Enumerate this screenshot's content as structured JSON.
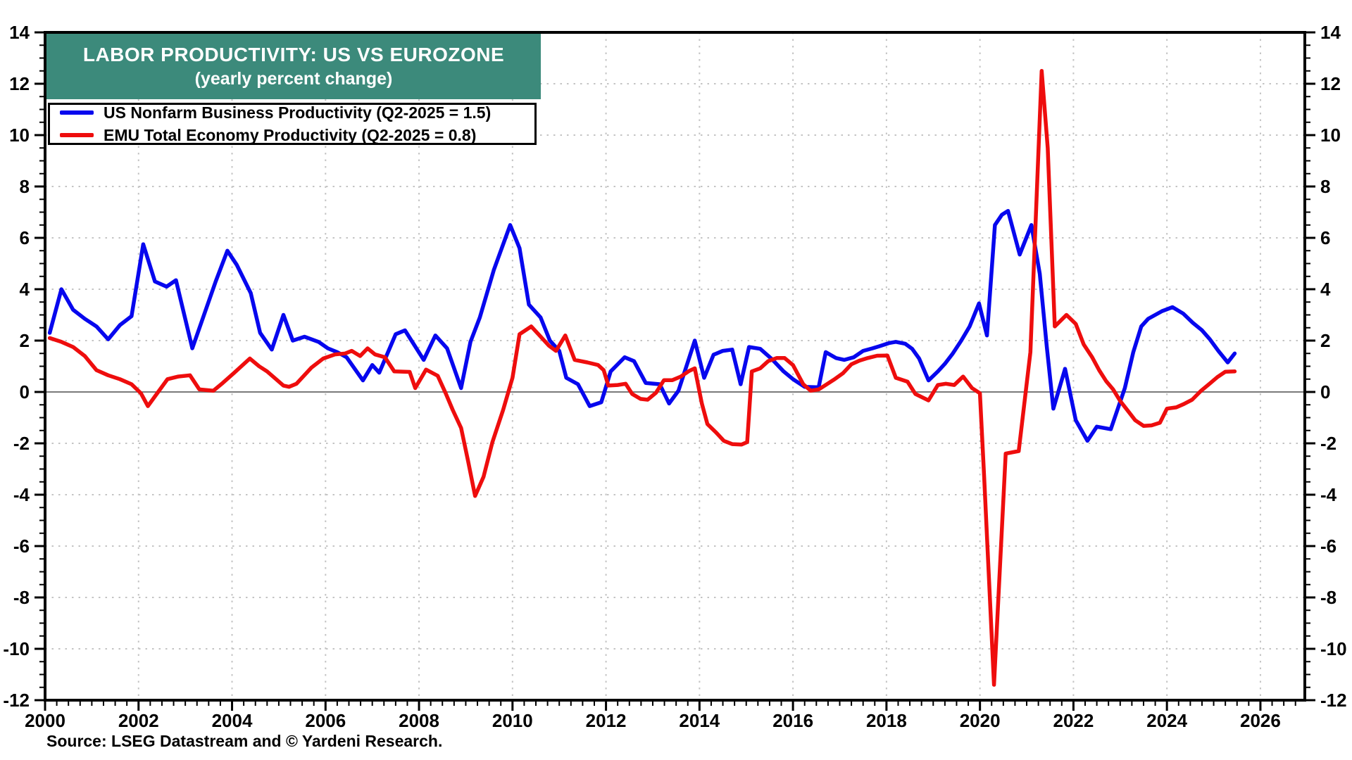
{
  "title": {
    "line1": "LABOR PRODUCTIVITY: US VS EUROZONE",
    "line2": "(yearly percent change)",
    "band_color": "#3c8a7b",
    "text_color": "#ffffff"
  },
  "legend": {
    "items": [
      {
        "label": "US Nonfarm Business Productivity (Q2-2025 = 1.5)",
        "color": "#0707ee"
      },
      {
        "label": "EMU Total Economy Productivity (Q2-2025 = 0.8)",
        "color": "#ee0d0d"
      }
    ]
  },
  "source": "Source: LSEG Datastream and © Yardeni Research.",
  "colors": {
    "us_line": "#0707ee",
    "emu_line": "#ee0d0d",
    "grid": "#c4c4c4",
    "zero_line": "#7a7a7a",
    "frame": "#000000",
    "background": "#ffffff"
  },
  "axes": {
    "x_tick_labels": [
      "2000",
      "2002",
      "2004",
      "2006",
      "2008",
      "2010",
      "2012",
      "2014",
      "2016",
      "2018",
      "2020",
      "2022",
      "2024",
      "2026"
    ],
    "y_tick_labels": [
      "-12",
      "-10",
      "-8",
      "-6",
      "-4",
      "-2",
      "0",
      "2",
      "4",
      "6",
      "8",
      "10",
      "12",
      "14"
    ]
  },
  "chart_data": {
    "type": "line",
    "title": "LABOR PRODUCTIVITY: US VS EUROZONE",
    "subtitle": "(yearly percent change)",
    "xlabel": "",
    "ylabel": "yearly percent change",
    "x_range": [
      2000,
      2026.95
    ],
    "ylim": [
      -12,
      14
    ],
    "x_major_tick_step": 2,
    "x_minor_tick_step": 0.25,
    "y_major_tick_step": 2,
    "y_minor_tick_step": 0.5,
    "grid": "dotted",
    "legend_position": "top-left",
    "series": [
      {
        "name": "US Nonfarm Business Productivity (Q2-2025 = 1.5)",
        "color": "#0707ee",
        "points": [
          [
            2000.1,
            2.3
          ],
          [
            2000.35,
            4.0
          ],
          [
            2000.6,
            3.2
          ],
          [
            2000.85,
            2.85
          ],
          [
            2001.1,
            2.55
          ],
          [
            2001.35,
            2.05
          ],
          [
            2001.6,
            2.6
          ],
          [
            2001.85,
            2.95
          ],
          [
            2002.1,
            5.75
          ],
          [
            2002.35,
            4.3
          ],
          [
            2002.6,
            4.1
          ],
          [
            2002.8,
            4.35
          ],
          [
            2003.15,
            1.7
          ],
          [
            2003.4,
            3.0
          ],
          [
            2003.65,
            4.3
          ],
          [
            2003.9,
            5.5
          ],
          [
            2004.1,
            4.95
          ],
          [
            2004.4,
            3.85
          ],
          [
            2004.6,
            2.3
          ],
          [
            2004.85,
            1.65
          ],
          [
            2005.1,
            3.0
          ],
          [
            2005.3,
            2.0
          ],
          [
            2005.55,
            2.15
          ],
          [
            2005.85,
            1.95
          ],
          [
            2006.05,
            1.7
          ],
          [
            2006.25,
            1.55
          ],
          [
            2006.45,
            1.35
          ],
          [
            2006.8,
            0.45
          ],
          [
            2007.0,
            1.05
          ],
          [
            2007.15,
            0.75
          ],
          [
            2007.5,
            2.25
          ],
          [
            2007.7,
            2.4
          ],
          [
            2008.1,
            1.25
          ],
          [
            2008.35,
            2.2
          ],
          [
            2008.6,
            1.7
          ],
          [
            2008.9,
            0.15
          ],
          [
            2009.1,
            1.95
          ],
          [
            2009.3,
            2.9
          ],
          [
            2009.6,
            4.75
          ],
          [
            2009.95,
            6.5
          ],
          [
            2010.15,
            5.6
          ],
          [
            2010.35,
            3.4
          ],
          [
            2010.6,
            2.9
          ],
          [
            2010.8,
            2.0
          ],
          [
            2011.0,
            1.6
          ],
          [
            2011.15,
            0.55
          ],
          [
            2011.4,
            0.3
          ],
          [
            2011.65,
            -0.55
          ],
          [
            2011.9,
            -0.4
          ],
          [
            2012.1,
            0.8
          ],
          [
            2012.4,
            1.35
          ],
          [
            2012.6,
            1.2
          ],
          [
            2012.85,
            0.35
          ],
          [
            2013.15,
            0.3
          ],
          [
            2013.35,
            -0.45
          ],
          [
            2013.55,
            0.05
          ],
          [
            2013.9,
            2.0
          ],
          [
            2014.1,
            0.55
          ],
          [
            2014.3,
            1.45
          ],
          [
            2014.5,
            1.6
          ],
          [
            2014.7,
            1.65
          ],
          [
            2014.88,
            0.3
          ],
          [
            2015.06,
            1.75
          ],
          [
            2015.3,
            1.68
          ],
          [
            2015.55,
            1.28
          ],
          [
            2015.8,
            0.8
          ],
          [
            2016.0,
            0.5
          ],
          [
            2016.25,
            0.2
          ],
          [
            2016.55,
            0.18
          ],
          [
            2016.7,
            1.55
          ],
          [
            2016.92,
            1.32
          ],
          [
            2017.1,
            1.25
          ],
          [
            2017.3,
            1.35
          ],
          [
            2017.5,
            1.6
          ],
          [
            2017.7,
            1.7
          ],
          [
            2017.85,
            1.78
          ],
          [
            2018.05,
            1.9
          ],
          [
            2018.2,
            1.95
          ],
          [
            2018.4,
            1.88
          ],
          [
            2018.55,
            1.68
          ],
          [
            2018.7,
            1.3
          ],
          [
            2018.9,
            0.45
          ],
          [
            2019.1,
            0.8
          ],
          [
            2019.25,
            1.1
          ],
          [
            2019.42,
            1.5
          ],
          [
            2019.6,
            2.0
          ],
          [
            2019.78,
            2.55
          ],
          [
            2019.98,
            3.45
          ],
          [
            2020.15,
            2.2
          ],
          [
            2020.32,
            6.5
          ],
          [
            2020.47,
            6.9
          ],
          [
            2020.6,
            7.05
          ],
          [
            2020.85,
            5.35
          ],
          [
            2021.1,
            6.5
          ],
          [
            2021.28,
            4.6
          ],
          [
            2021.43,
            1.75
          ],
          [
            2021.57,
            -0.65
          ],
          [
            2021.82,
            0.9
          ],
          [
            2022.05,
            -1.1
          ],
          [
            2022.3,
            -1.9
          ],
          [
            2022.5,
            -1.35
          ],
          [
            2022.8,
            -1.45
          ],
          [
            2023.1,
            0.15
          ],
          [
            2023.28,
            1.55
          ],
          [
            2023.45,
            2.55
          ],
          [
            2023.6,
            2.85
          ],
          [
            2023.9,
            3.15
          ],
          [
            2024.12,
            3.3
          ],
          [
            2024.35,
            3.05
          ],
          [
            2024.55,
            2.7
          ],
          [
            2024.75,
            2.4
          ],
          [
            2024.92,
            2.05
          ],
          [
            2025.1,
            1.6
          ],
          [
            2025.3,
            1.15
          ],
          [
            2025.45,
            1.5
          ]
        ]
      },
      {
        "name": "EMU Total Economy Productivity (Q2-2025 = 0.8)",
        "color": "#ee0d0d",
        "points": [
          [
            2000.1,
            2.1
          ],
          [
            2000.35,
            1.95
          ],
          [
            2000.6,
            1.75
          ],
          [
            2000.85,
            1.4
          ],
          [
            2001.1,
            0.85
          ],
          [
            2001.35,
            0.65
          ],
          [
            2001.6,
            0.5
          ],
          [
            2001.85,
            0.3
          ],
          [
            2002.05,
            -0.05
          ],
          [
            2002.2,
            -0.55
          ],
          [
            2002.42,
            0.0
          ],
          [
            2002.62,
            0.5
          ],
          [
            2002.85,
            0.6
          ],
          [
            2003.1,
            0.65
          ],
          [
            2003.3,
            0.1
          ],
          [
            2003.6,
            0.05
          ],
          [
            2003.8,
            0.35
          ],
          [
            2004.05,
            0.75
          ],
          [
            2004.38,
            1.3
          ],
          [
            2004.58,
            1.0
          ],
          [
            2004.75,
            0.8
          ],
          [
            2005.1,
            0.25
          ],
          [
            2005.22,
            0.2
          ],
          [
            2005.38,
            0.32
          ],
          [
            2005.7,
            0.95
          ],
          [
            2005.95,
            1.3
          ],
          [
            2006.2,
            1.46
          ],
          [
            2006.42,
            1.5
          ],
          [
            2006.56,
            1.6
          ],
          [
            2006.74,
            1.4
          ],
          [
            2006.9,
            1.7
          ],
          [
            2007.06,
            1.46
          ],
          [
            2007.27,
            1.35
          ],
          [
            2007.47,
            0.8
          ],
          [
            2007.8,
            0.78
          ],
          [
            2007.92,
            0.15
          ],
          [
            2008.15,
            0.87
          ],
          [
            2008.4,
            0.63
          ],
          [
            2008.57,
            -0.05
          ],
          [
            2008.72,
            -0.7
          ],
          [
            2008.9,
            -1.4
          ],
          [
            2009.05,
            -2.7
          ],
          [
            2009.2,
            -4.05
          ],
          [
            2009.38,
            -3.3
          ],
          [
            2009.57,
            -1.95
          ],
          [
            2009.8,
            -0.7
          ],
          [
            2010.0,
            0.55
          ],
          [
            2010.15,
            2.25
          ],
          [
            2010.4,
            2.55
          ],
          [
            2010.58,
            2.2
          ],
          [
            2010.78,
            1.8
          ],
          [
            2010.93,
            1.6
          ],
          [
            2011.13,
            2.2
          ],
          [
            2011.33,
            1.25
          ],
          [
            2011.6,
            1.15
          ],
          [
            2011.83,
            1.05
          ],
          [
            2011.95,
            0.85
          ],
          [
            2012.05,
            0.25
          ],
          [
            2012.25,
            0.27
          ],
          [
            2012.42,
            0.32
          ],
          [
            2012.56,
            -0.08
          ],
          [
            2012.74,
            -0.27
          ],
          [
            2012.89,
            -0.3
          ],
          [
            2013.07,
            -0.03
          ],
          [
            2013.24,
            0.46
          ],
          [
            2013.42,
            0.46
          ],
          [
            2013.6,
            0.6
          ],
          [
            2013.78,
            0.82
          ],
          [
            2013.9,
            0.92
          ],
          [
            2014.05,
            -0.45
          ],
          [
            2014.17,
            -1.25
          ],
          [
            2014.35,
            -1.57
          ],
          [
            2014.52,
            -1.9
          ],
          [
            2014.7,
            -2.03
          ],
          [
            2014.9,
            -2.05
          ],
          [
            2015.02,
            -1.95
          ],
          [
            2015.12,
            0.8
          ],
          [
            2015.3,
            0.92
          ],
          [
            2015.47,
            1.2
          ],
          [
            2015.65,
            1.32
          ],
          [
            2015.82,
            1.32
          ],
          [
            2016.0,
            1.05
          ],
          [
            2016.22,
            0.3
          ],
          [
            2016.38,
            0.05
          ],
          [
            2016.55,
            0.1
          ],
          [
            2016.7,
            0.27
          ],
          [
            2016.9,
            0.51
          ],
          [
            2017.07,
            0.73
          ],
          [
            2017.25,
            1.08
          ],
          [
            2017.42,
            1.22
          ],
          [
            2017.6,
            1.32
          ],
          [
            2017.8,
            1.41
          ],
          [
            2018.02,
            1.42
          ],
          [
            2018.2,
            0.55
          ],
          [
            2018.45,
            0.4
          ],
          [
            2018.62,
            -0.08
          ],
          [
            2018.9,
            -0.33
          ],
          [
            2019.1,
            0.27
          ],
          [
            2019.27,
            0.32
          ],
          [
            2019.45,
            0.27
          ],
          [
            2019.64,
            0.6
          ],
          [
            2019.83,
            0.15
          ],
          [
            2020.0,
            -0.05
          ],
          [
            2020.09,
            -3.3
          ],
          [
            2020.3,
            -11.4
          ],
          [
            2020.55,
            -2.4
          ],
          [
            2020.83,
            -2.3
          ],
          [
            2021.08,
            1.55
          ],
          [
            2021.32,
            12.5
          ],
          [
            2021.45,
            9.5
          ],
          [
            2021.6,
            2.55
          ],
          [
            2021.85,
            3.0
          ],
          [
            2022.05,
            2.65
          ],
          [
            2022.22,
            1.85
          ],
          [
            2022.4,
            1.35
          ],
          [
            2022.55,
            0.85
          ],
          [
            2022.7,
            0.42
          ],
          [
            2022.85,
            0.1
          ],
          [
            2023.0,
            -0.35
          ],
          [
            2023.15,
            -0.7
          ],
          [
            2023.32,
            -1.1
          ],
          [
            2023.5,
            -1.32
          ],
          [
            2023.67,
            -1.3
          ],
          [
            2023.85,
            -1.2
          ],
          [
            2024.0,
            -0.65
          ],
          [
            2024.2,
            -0.6
          ],
          [
            2024.36,
            -0.47
          ],
          [
            2024.54,
            -0.3
          ],
          [
            2024.72,
            0.03
          ],
          [
            2024.9,
            0.3
          ],
          [
            2025.08,
            0.58
          ],
          [
            2025.25,
            0.79
          ],
          [
            2025.45,
            0.8
          ]
        ]
      }
    ]
  }
}
